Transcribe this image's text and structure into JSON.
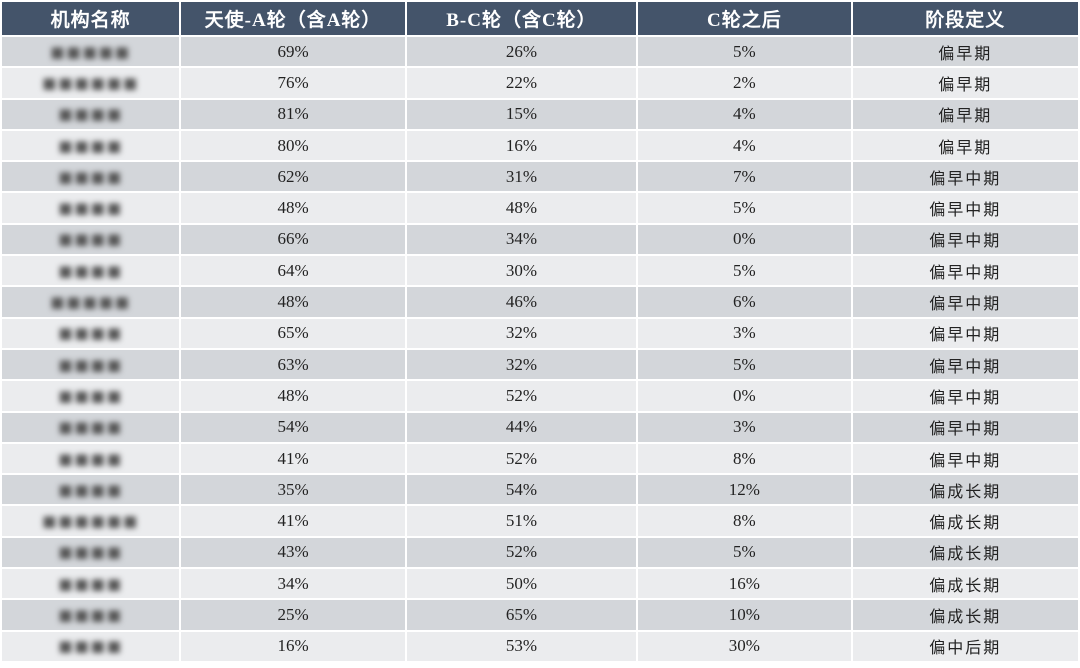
{
  "headers": [
    "机构名称",
    "天使-A轮（含A轮）",
    "B-C轮（含C轮）",
    "C轮之后",
    "阶段定义"
  ],
  "rows": [
    {
      "name": "■■■■■",
      "angel_a": "69%",
      "b_c": "26%",
      "after_c": "5%",
      "stage": "偏早期"
    },
    {
      "name": "■■■■■■",
      "angel_a": "76%",
      "b_c": "22%",
      "after_c": "2%",
      "stage": "偏早期"
    },
    {
      "name": "■■■■",
      "angel_a": "81%",
      "b_c": "15%",
      "after_c": "4%",
      "stage": "偏早期"
    },
    {
      "name": "■■■■",
      "angel_a": "80%",
      "b_c": "16%",
      "after_c": "4%",
      "stage": "偏早期"
    },
    {
      "name": "■■■■",
      "angel_a": "62%",
      "b_c": "31%",
      "after_c": "7%",
      "stage": "偏早中期"
    },
    {
      "name": "■■■■",
      "angel_a": "48%",
      "b_c": "48%",
      "after_c": "5%",
      "stage": "偏早中期"
    },
    {
      "name": "■■■■",
      "angel_a": "66%",
      "b_c": "34%",
      "after_c": "0%",
      "stage": "偏早中期"
    },
    {
      "name": "■■■■",
      "angel_a": "64%",
      "b_c": "30%",
      "after_c": "5%",
      "stage": "偏早中期"
    },
    {
      "name": "■■■■■",
      "angel_a": "48%",
      "b_c": "46%",
      "after_c": "6%",
      "stage": "偏早中期"
    },
    {
      "name": "■■■■",
      "angel_a": "65%",
      "b_c": "32%",
      "after_c": "3%",
      "stage": "偏早中期"
    },
    {
      "name": "■■■■",
      "angel_a": "63%",
      "b_c": "32%",
      "after_c": "5%",
      "stage": "偏早中期"
    },
    {
      "name": "■■■■",
      "angel_a": "48%",
      "b_c": "52%",
      "after_c": "0%",
      "stage": "偏早中期"
    },
    {
      "name": "■■■■",
      "angel_a": "54%",
      "b_c": "44%",
      "after_c": "3%",
      "stage": "偏早中期"
    },
    {
      "name": "■■■■",
      "angel_a": "41%",
      "b_c": "52%",
      "after_c": "8%",
      "stage": "偏早中期"
    },
    {
      "name": "■■■■",
      "angel_a": "35%",
      "b_c": "54%",
      "after_c": "12%",
      "stage": "偏成长期"
    },
    {
      "name": "■■■■■■",
      "angel_a": "41%",
      "b_c": "51%",
      "after_c": "8%",
      "stage": "偏成长期"
    },
    {
      "name": "■■■■",
      "angel_a": "43%",
      "b_c": "52%",
      "after_c": "5%",
      "stage": "偏成长期"
    },
    {
      "name": "■■■■",
      "angel_a": "34%",
      "b_c": "50%",
      "after_c": "16%",
      "stage": "偏成长期"
    },
    {
      "name": "■■■■",
      "angel_a": "25%",
      "b_c": "65%",
      "after_c": "10%",
      "stage": "偏成长期"
    },
    {
      "name": "■■■■",
      "angel_a": "16%",
      "b_c": "53%",
      "after_c": "30%",
      "stage": "偏中后期"
    }
  ]
}
